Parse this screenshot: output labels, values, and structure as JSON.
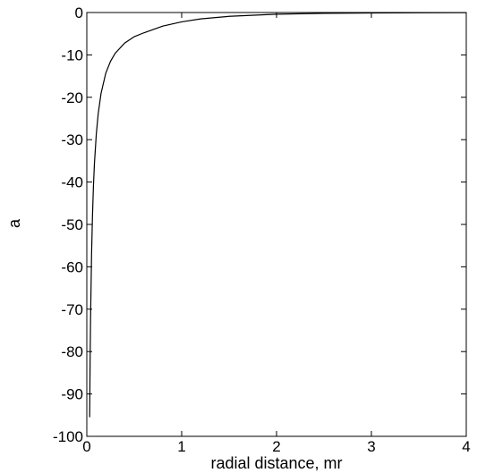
{
  "chart_data": {
    "type": "line",
    "xlabel": "radial distance, mr",
    "ylabel": "a",
    "xlim": [
      0,
      4
    ],
    "ylim": [
      -100,
      0
    ],
    "xticks": [
      0,
      1,
      2,
      3,
      4
    ],
    "yticks": [
      0,
      -10,
      -20,
      -30,
      -40,
      -50,
      -60,
      -70,
      -80,
      -90,
      -100
    ],
    "grid": false,
    "series": [
      {
        "color": "#000000",
        "points": [
          {
            "x": 0.03,
            "y": -95.5
          },
          {
            "x": 0.035,
            "y": -81.9
          },
          {
            "x": 0.04,
            "y": -71.6
          },
          {
            "x": 0.05,
            "y": -57.3
          },
          {
            "x": 0.06,
            "y": -47.8
          },
          {
            "x": 0.07,
            "y": -40.9
          },
          {
            "x": 0.08,
            "y": -35.8
          },
          {
            "x": 0.1,
            "y": -28.7
          },
          {
            "x": 0.12,
            "y": -23.9
          },
          {
            "x": 0.15,
            "y": -19.1
          },
          {
            "x": 0.2,
            "y": -14.3
          },
          {
            "x": 0.25,
            "y": -11.5
          },
          {
            "x": 0.3,
            "y": -9.6
          },
          {
            "x": 0.4,
            "y": -7.2
          },
          {
            "x": 0.5,
            "y": -5.7
          },
          {
            "x": 0.6,
            "y": -4.8
          },
          {
            "x": 0.8,
            "y": -3.2
          },
          {
            "x": 1.0,
            "y": -2.2
          },
          {
            "x": 1.2,
            "y": -1.5
          },
          {
            "x": 1.5,
            "y": -0.9
          },
          {
            "x": 2.0,
            "y": -0.4
          },
          {
            "x": 2.5,
            "y": -0.2
          },
          {
            "x": 3.0,
            "y": -0.1
          },
          {
            "x": 3.5,
            "y": -0.05
          },
          {
            "x": 4.0,
            "y": -0.02
          }
        ]
      }
    ]
  }
}
